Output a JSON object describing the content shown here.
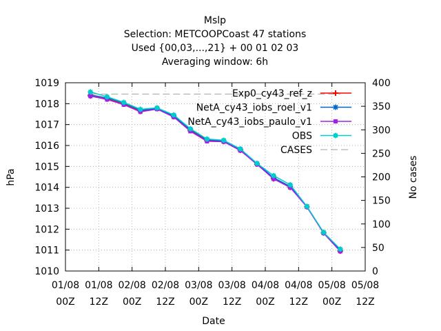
{
  "chart_data": {
    "type": "line",
    "title_lines": [
      "Mslp",
      "Selection: METCOOPCoast     47 stations",
      "Used {00,03,...,21} + 00 01 02 03",
      "Averaging window:  6h"
    ],
    "xlabel": "Date",
    "ylabel": "hPa",
    "y2label": "No cases",
    "ylim": [
      1010,
      1019
    ],
    "y2lim": [
      0,
      400
    ],
    "y_ticks": [
      "1010",
      "1011",
      "1012",
      "1013",
      "1014",
      "1015",
      "1016",
      "1017",
      "1018",
      "1019"
    ],
    "y2_ticks": [
      "0",
      "50",
      "100",
      "150",
      "200",
      "250",
      "300",
      "350",
      "400"
    ],
    "x_ticks": [
      {
        "date": "01/08",
        "hour": "00Z"
      },
      {
        "date": "01/08",
        "hour": "12Z"
      },
      {
        "date": "02/08",
        "hour": "00Z"
      },
      {
        "date": "02/08",
        "hour": "12Z"
      },
      {
        "date": "03/08",
        "hour": "00Z"
      },
      {
        "date": "03/08",
        "hour": "12Z"
      },
      {
        "date": "04/08",
        "hour": "00Z"
      },
      {
        "date": "04/08",
        "hour": "12Z"
      },
      {
        "date": "05/08",
        "hour": "00Z"
      },
      {
        "date": "05/08",
        "hour": "12Z"
      }
    ],
    "x_hours": [
      9,
      15,
      21,
      27,
      33,
      39,
      45,
      51,
      57,
      63,
      69,
      75,
      81,
      87,
      93,
      99,
      105
    ],
    "grid": true,
    "legend_position": "top-right",
    "series": [
      {
        "name": "Exp0_cy43_ref_z",
        "color": "#ff0000",
        "marker": "plus",
        "axis": "left",
        "values": [
          1018.37,
          1018.22,
          1017.98,
          1017.63,
          1017.76,
          1017.38,
          1016.71,
          1016.23,
          1016.19,
          1015.77,
          1015.11,
          1014.41,
          1014.0,
          1013.07,
          1011.82,
          1010.95,
          null
        ]
      },
      {
        "name": "NetA_cy43_iobs_roel_v1",
        "color": "#0066cc",
        "marker": "star",
        "axis": "left",
        "values": [
          1018.42,
          1018.27,
          1018.03,
          1017.68,
          1017.77,
          1017.42,
          1016.76,
          1016.27,
          1016.22,
          1015.81,
          1015.13,
          1014.46,
          1014.04,
          1013.08,
          1011.83,
          1010.98,
          null
        ]
      },
      {
        "name": "NetA_cy43_iobs_paulo_v1",
        "color": "#a020f0",
        "marker": "square",
        "axis": "left",
        "values": [
          1018.36,
          1018.2,
          1017.95,
          1017.61,
          1017.74,
          1017.36,
          1016.68,
          1016.2,
          1016.18,
          1015.76,
          1015.1,
          1014.4,
          1013.99,
          1013.06,
          1011.81,
          1010.94,
          null
        ]
      },
      {
        "name": "OBS",
        "color": "#00cccc",
        "marker": "box",
        "axis": "left",
        "values": [
          1018.56,
          1018.33,
          1018.06,
          1017.73,
          1017.8,
          1017.46,
          1016.8,
          1016.31,
          1016.25,
          1015.84,
          1015.15,
          1014.56,
          1014.12,
          1013.09,
          1011.85,
          1011.05,
          null
        ]
      },
      {
        "name": "CASES",
        "color": "#a0a0a0",
        "marker": "none",
        "axis": "right",
        "dashed": true,
        "values": [
          376,
          376,
          376,
          376,
          376,
          376,
          376,
          376,
          376,
          376,
          376,
          376,
          376,
          376,
          376,
          376,
          null
        ]
      }
    ]
  }
}
